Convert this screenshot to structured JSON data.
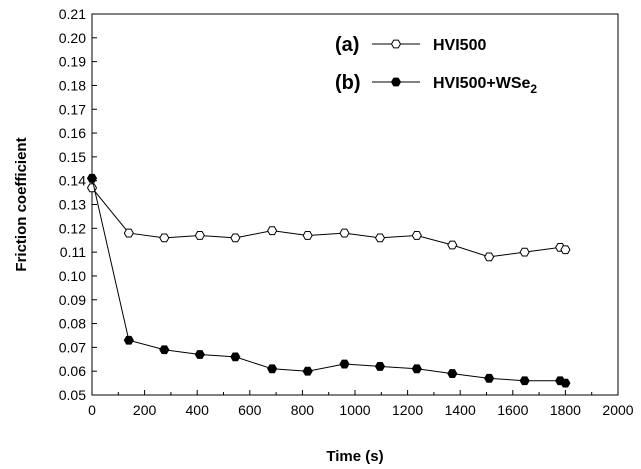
{
  "chart_data": {
    "type": "line",
    "xlabel": "Time (s)",
    "ylabel": "Friction coefficient",
    "xlim": [
      0,
      2000
    ],
    "ylim": [
      0.05,
      0.21
    ],
    "x_ticks": [
      "0",
      "200",
      "400",
      "600",
      "800",
      "1000",
      "1200",
      "1400",
      "1600",
      "1800",
      "2000"
    ],
    "y_ticks": [
      "0.05",
      "0.06",
      "0.07",
      "0.08",
      "0.09",
      "0.10",
      "0.11",
      "0.12",
      "0.13",
      "0.14",
      "0.15",
      "0.16",
      "0.17",
      "0.18",
      "0.19",
      "0.20",
      "0.21"
    ],
    "grid": false,
    "legend_position": "top-right",
    "series": [
      {
        "tag": "(a)",
        "name": "HVI500",
        "marker": "open-hexagon",
        "color": "#000000",
        "points": [
          [
            0,
            0.137
          ],
          [
            140,
            0.118
          ],
          [
            275,
            0.116
          ],
          [
            410,
            0.117
          ],
          [
            545,
            0.116
          ],
          [
            685,
            0.119
          ],
          [
            820,
            0.117
          ],
          [
            960,
            0.118
          ],
          [
            1095,
            0.116
          ],
          [
            1235,
            0.117
          ],
          [
            1370,
            0.113
          ],
          [
            1510,
            0.108
          ],
          [
            1645,
            0.11
          ],
          [
            1780,
            0.112
          ],
          [
            1800,
            0.111
          ]
        ]
      },
      {
        "tag": "(b)",
        "name": "HVI500+WSe",
        "name_subscript": "2",
        "marker": "filled-hexagon",
        "color": "#000000",
        "points": [
          [
            0,
            0.141
          ],
          [
            140,
            0.073
          ],
          [
            275,
            0.069
          ],
          [
            410,
            0.067
          ],
          [
            545,
            0.066
          ],
          [
            685,
            0.061
          ],
          [
            820,
            0.06
          ],
          [
            960,
            0.063
          ],
          [
            1095,
            0.062
          ],
          [
            1235,
            0.061
          ],
          [
            1370,
            0.059
          ],
          [
            1510,
            0.057
          ],
          [
            1645,
            0.056
          ],
          [
            1780,
            0.056
          ],
          [
            1800,
            0.055
          ]
        ]
      }
    ]
  }
}
